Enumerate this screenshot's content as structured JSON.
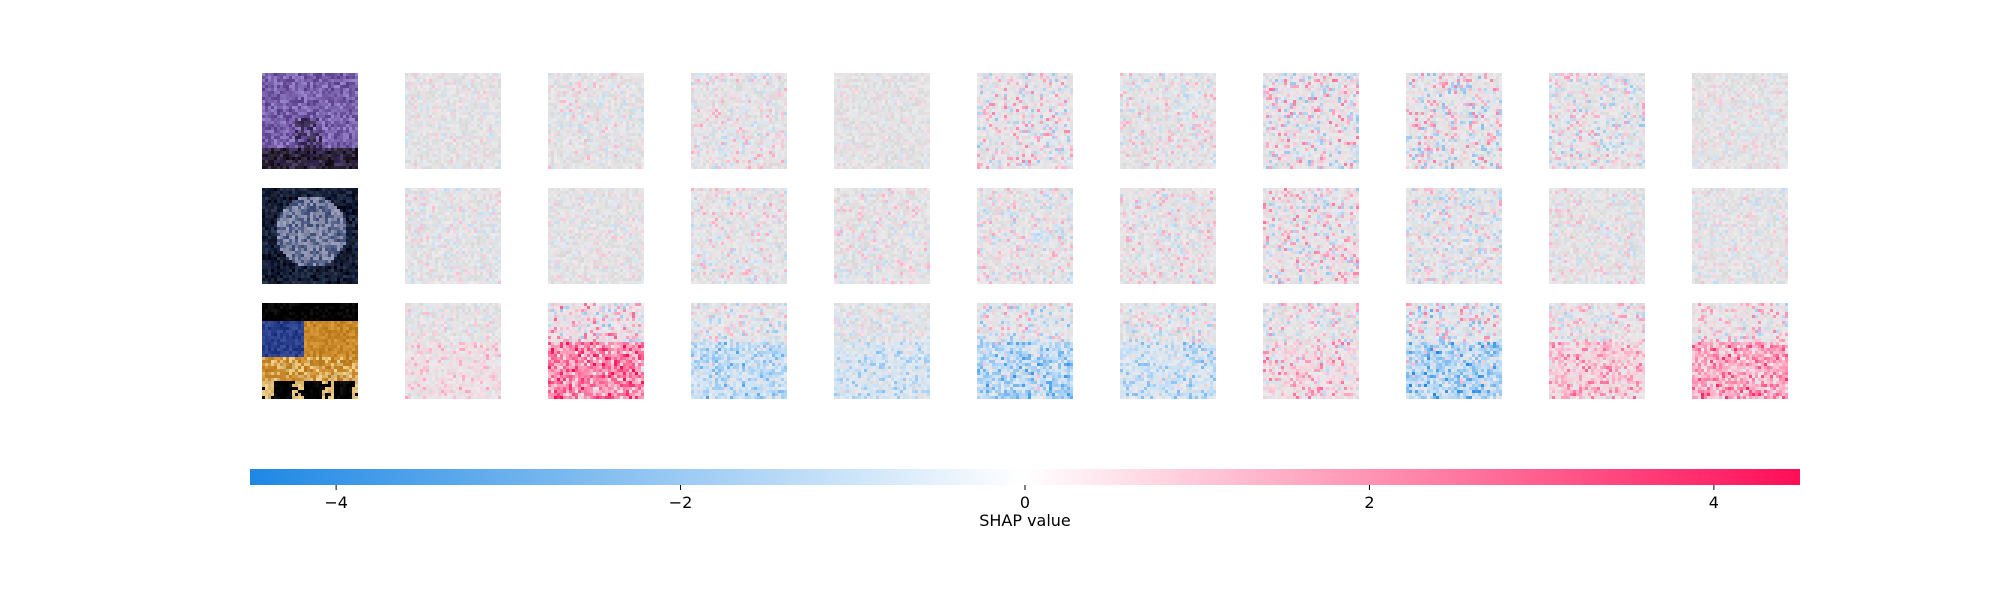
{
  "chart_data": {
    "type": "heatmap",
    "description_rows": 3,
    "description_cols": 10,
    "colorbar": {
      "label": "SHAP value",
      "min": -4.5,
      "max": 4.5,
      "ticks": [
        -4,
        -2,
        0,
        2,
        4
      ],
      "tick_labels": [
        "−4",
        "−2",
        "0",
        "2",
        "4"
      ],
      "colors": {
        "negative": "#1e88e5",
        "zero": "#ffffff",
        "positive": "#ff0d57"
      }
    },
    "rows": [
      {
        "input_image": "purple-sky-animal-photo",
        "image_colors": [
          "#6a4f9a",
          "#8a74bd",
          "#3b2f55",
          "#1f1a24"
        ],
        "shap_bias": [
          0.1,
          0.05,
          0.4,
          0.2,
          0.6,
          0.3,
          0.9,
          0.0,
          -0.6,
          0.3
        ],
        "shap_spread": [
          1.2,
          1.4,
          1.6,
          1.0,
          2.2,
          1.6,
          2.4,
          2.4,
          2.0,
          1.2
        ]
      },
      {
        "input_image": "dark-gray-animal-closeup-photo",
        "image_colors": [
          "#1b2740",
          "#4a5780",
          "#8b91ad",
          "#0f1425"
        ],
        "shap_bias": [
          -0.3,
          0.0,
          0.4,
          0.4,
          0.3,
          0.6,
          1.2,
          -0.5,
          0.2,
          -0.2
        ],
        "shap_spread": [
          1.3,
          1.2,
          1.6,
          1.4,
          1.7,
          1.6,
          2.2,
          1.8,
          1.4,
          1.3
        ]
      },
      {
        "input_image": "yellow-blue-car-photo",
        "image_colors": [
          "#000000",
          "#c9882a",
          "#2a3f8c",
          "#e3c07a"
        ],
        "shap_bias": [
          0.5,
          2.2,
          -1.2,
          -0.8,
          -1.4,
          -0.9,
          0.6,
          -1.5,
          1.0,
          1.6
        ],
        "shap_spread": [
          1.2,
          2.4,
          1.8,
          1.4,
          2.2,
          1.8,
          2.0,
          2.6,
          1.8,
          2.0
        ]
      }
    ]
  }
}
